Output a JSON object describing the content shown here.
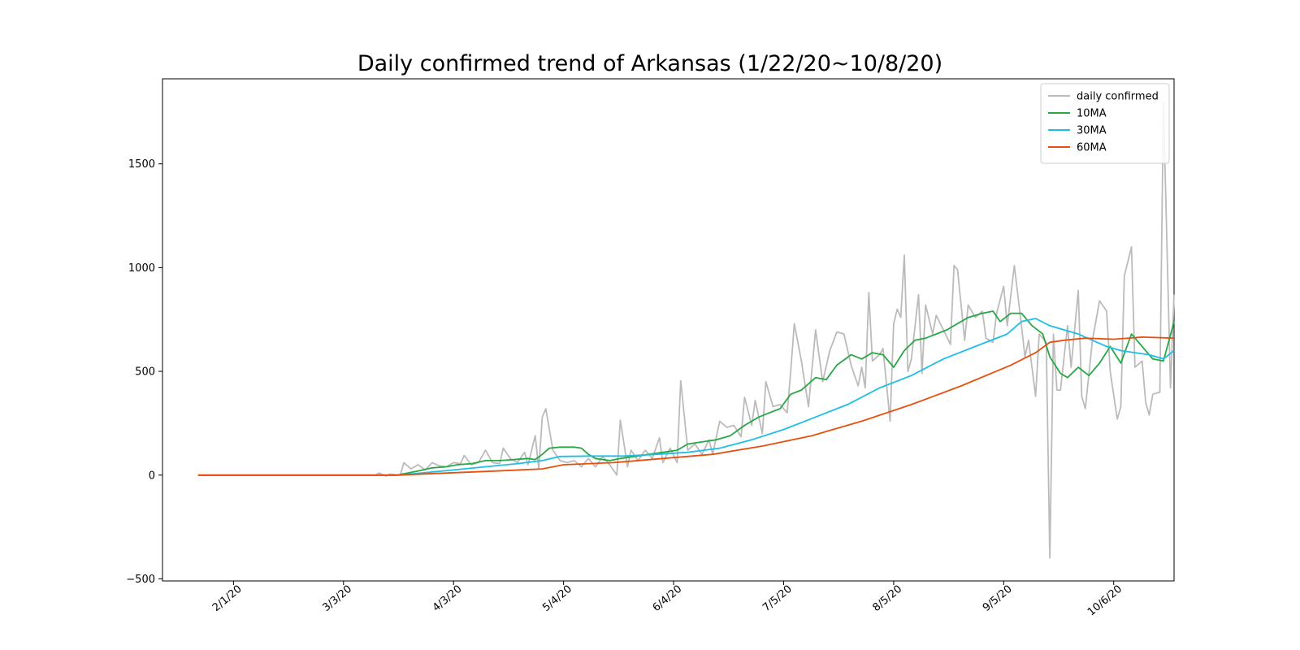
{
  "chart_data": {
    "type": "line",
    "title": "Daily confirmed trend of Arkansas (1/22/20~10/8/20)",
    "xlabel": "",
    "ylabel": "",
    "x_range": [
      "1/12/20",
      "10/23/20"
    ],
    "ylim": [
      -510,
      1910
    ],
    "grid": false,
    "legend_position": "top-right",
    "x_ticks": [
      "2/1/20",
      "3/3/20",
      "4/3/20",
      "5/4/20",
      "6/4/20",
      "7/5/20",
      "8/5/20",
      "9/5/20",
      "10/6/20"
    ],
    "y_ticks": [
      -500,
      0,
      500,
      1000,
      1500
    ],
    "colors": {
      "daily confirmed": "#bbbbbb",
      "10MA": "#28a745",
      "30MA": "#1ebee6",
      "60MA": "#e6500f"
    },
    "series": [
      {
        "name": "daily confirmed",
        "points": [
          [
            "1/22/20",
            0
          ],
          [
            "3/1/20",
            0
          ],
          [
            "3/12/20",
            0
          ],
          [
            "3/13/20",
            10
          ],
          [
            "3/15/20",
            -5
          ],
          [
            "3/16/20",
            5
          ],
          [
            "3/19/20",
            0
          ],
          [
            "3/20/20",
            60
          ],
          [
            "3/22/20",
            30
          ],
          [
            "3/24/20",
            50
          ],
          [
            "3/26/20",
            25
          ],
          [
            "3/28/20",
            60
          ],
          [
            "3/30/20",
            45
          ],
          [
            "4/1/20",
            40
          ],
          [
            "4/3/20",
            60
          ],
          [
            "4/5/20",
            55
          ],
          [
            "4/6/20",
            95
          ],
          [
            "4/8/20",
            50
          ],
          [
            "4/10/20",
            60
          ],
          [
            "4/12/20",
            120
          ],
          [
            "4/14/20",
            60
          ],
          [
            "4/16/20",
            55
          ],
          [
            "4/17/20",
            130
          ],
          [
            "4/19/20",
            80
          ],
          [
            "4/21/20",
            60
          ],
          [
            "4/23/20",
            110
          ],
          [
            "4/24/20",
            50
          ],
          [
            "4/26/20",
            190
          ],
          [
            "4/27/20",
            30
          ],
          [
            "4/28/20",
            280
          ],
          [
            "4/29/20",
            320
          ],
          [
            "5/1/20",
            120
          ],
          [
            "5/3/20",
            70
          ],
          [
            "5/5/20",
            60
          ],
          [
            "5/7/20",
            70
          ],
          [
            "5/9/20",
            40
          ],
          [
            "5/11/20",
            80
          ],
          [
            "5/13/20",
            40
          ],
          [
            "5/15/20",
            90
          ],
          [
            "5/17/20",
            50
          ],
          [
            "5/19/20",
            0
          ],
          [
            "5/20/20",
            265
          ],
          [
            "5/22/20",
            40
          ],
          [
            "5/23/20",
            120
          ],
          [
            "5/25/20",
            70
          ],
          [
            "5/27/20",
            120
          ],
          [
            "5/29/20",
            80
          ],
          [
            "5/31/20",
            180
          ],
          [
            "6/1/20",
            60
          ],
          [
            "6/3/20",
            130
          ],
          [
            "6/5/20",
            60
          ],
          [
            "6/6/20",
            455
          ],
          [
            "6/8/20",
            120
          ],
          [
            "6/10/20",
            150
          ],
          [
            "6/12/20",
            100
          ],
          [
            "6/14/20",
            170
          ],
          [
            "6/15/20",
            100
          ],
          [
            "6/17/20",
            260
          ],
          [
            "6/19/20",
            230
          ],
          [
            "6/21/20",
            240
          ],
          [
            "6/23/20",
            185
          ],
          [
            "6/24/20",
            375
          ],
          [
            "6/26/20",
            240
          ],
          [
            "6/27/20",
            360
          ],
          [
            "6/29/20",
            200
          ],
          [
            "6/30/20",
            450
          ],
          [
            "7/2/20",
            330
          ],
          [
            "7/4/20",
            340
          ],
          [
            "7/6/20",
            300
          ],
          [
            "7/7/20",
            500
          ],
          [
            "7/8/20",
            730
          ],
          [
            "7/10/20",
            550
          ],
          [
            "7/12/20",
            330
          ],
          [
            "7/14/20",
            700
          ],
          [
            "7/16/20",
            450
          ],
          [
            "7/18/20",
            600
          ],
          [
            "7/20/20",
            690
          ],
          [
            "7/22/20",
            680
          ],
          [
            "7/24/20",
            530
          ],
          [
            "7/26/20",
            430
          ],
          [
            "7/27/20",
            520
          ],
          [
            "7/28/20",
            420
          ],
          [
            "7/29/20",
            880
          ],
          [
            "7/30/20",
            550
          ],
          [
            "8/1/20",
            580
          ],
          [
            "8/2/20",
            610
          ],
          [
            "8/4/20",
            260
          ],
          [
            "8/5/20",
            730
          ],
          [
            "8/6/20",
            800
          ],
          [
            "8/7/20",
            760
          ],
          [
            "8/8/20",
            1060
          ],
          [
            "8/9/20",
            500
          ],
          [
            "8/10/20",
            560
          ],
          [
            "8/12/20",
            870
          ],
          [
            "8/13/20",
            490
          ],
          [
            "8/14/20",
            820
          ],
          [
            "8/16/20",
            680
          ],
          [
            "8/17/20",
            770
          ],
          [
            "8/19/20",
            700
          ],
          [
            "8/21/20",
            630
          ],
          [
            "8/22/20",
            1010
          ],
          [
            "8/23/20",
            990
          ],
          [
            "8/25/20",
            650
          ],
          [
            "8/26/20",
            820
          ],
          [
            "8/28/20",
            760
          ],
          [
            "8/30/20",
            790
          ],
          [
            "8/31/20",
            660
          ],
          [
            "9/2/20",
            640
          ],
          [
            "9/3/20",
            780
          ],
          [
            "9/5/20",
            910
          ],
          [
            "9/6/20",
            720
          ],
          [
            "9/8/20",
            1010
          ],
          [
            "9/10/20",
            720
          ],
          [
            "9/11/20",
            570
          ],
          [
            "9/12/20",
            650
          ],
          [
            "9/14/20",
            380
          ],
          [
            "9/15/20",
            680
          ],
          [
            "9/17/20",
            640
          ],
          [
            "9/18/20",
            -400
          ],
          [
            "9/19/20",
            680
          ],
          [
            "9/20/20",
            410
          ],
          [
            "9/21/20",
            410
          ],
          [
            "9/23/20",
            720
          ],
          [
            "9/24/20",
            520
          ],
          [
            "9/26/20",
            890
          ],
          [
            "9/27/20",
            380
          ],
          [
            "9/28/20",
            320
          ],
          [
            "9/30/20",
            650
          ],
          [
            "10/2/20",
            840
          ],
          [
            "10/4/20",
            790
          ],
          [
            "10/5/20",
            500
          ],
          [
            "10/7/20",
            270
          ],
          [
            "10/8/20",
            330
          ],
          [
            "10/9/20",
            960
          ],
          [
            "10/11/20",
            1100
          ],
          [
            "10/12/20",
            520
          ],
          [
            "10/14/20",
            550
          ],
          [
            "10/15/20",
            350
          ],
          [
            "10/16/20",
            290
          ],
          [
            "10/17/20",
            390
          ],
          [
            "10/19/20",
            400
          ],
          [
            "10/20/20",
            1800
          ],
          [
            "10/22/20",
            420
          ],
          [
            "10/23/20",
            870
          ]
        ]
      },
      {
        "name": "10MA",
        "points": [
          [
            "1/22/20",
            0
          ],
          [
            "3/18/20",
            0
          ],
          [
            "3/21/20",
            10
          ],
          [
            "3/24/20",
            20
          ],
          [
            "3/28/20",
            35
          ],
          [
            "4/1/20",
            40
          ],
          [
            "4/4/20",
            50
          ],
          [
            "4/8/20",
            55
          ],
          [
            "4/12/20",
            70
          ],
          [
            "4/16/20",
            70
          ],
          [
            "4/20/20",
            75
          ],
          [
            "4/24/20",
            80
          ],
          [
            "4/26/20",
            75
          ],
          [
            "4/28/20",
            100
          ],
          [
            "4/30/20",
            130
          ],
          [
            "5/3/20",
            135
          ],
          [
            "5/7/20",
            135
          ],
          [
            "5/9/20",
            130
          ],
          [
            "5/11/20",
            100
          ],
          [
            "5/13/20",
            80
          ],
          [
            "5/17/20",
            70
          ],
          [
            "5/20/20",
            80
          ],
          [
            "5/24/20",
            90
          ],
          [
            "5/28/20",
            100
          ],
          [
            "6/1/20",
            110
          ],
          [
            "6/5/20",
            120
          ],
          [
            "6/8/20",
            150
          ],
          [
            "6/12/20",
            160
          ],
          [
            "6/16/20",
            170
          ],
          [
            "6/20/20",
            190
          ],
          [
            "6/24/20",
            240
          ],
          [
            "6/28/20",
            280
          ],
          [
            "7/1/20",
            300
          ],
          [
            "7/4/20",
            320
          ],
          [
            "7/7/20",
            390
          ],
          [
            "7/10/20",
            410
          ],
          [
            "7/12/20",
            440
          ],
          [
            "7/14/20",
            470
          ],
          [
            "7/17/20",
            460
          ],
          [
            "7/20/20",
            530
          ],
          [
            "7/24/20",
            580
          ],
          [
            "7/27/20",
            560
          ],
          [
            "7/30/20",
            590
          ],
          [
            "8/2/20",
            580
          ],
          [
            "8/5/20",
            520
          ],
          [
            "8/8/20",
            600
          ],
          [
            "8/11/20",
            650
          ],
          [
            "8/14/20",
            660
          ],
          [
            "8/17/20",
            680
          ],
          [
            "8/20/20",
            700
          ],
          [
            "8/23/20",
            730
          ],
          [
            "8/26/20",
            760
          ],
          [
            "8/30/20",
            780
          ],
          [
            "9/2/20",
            790
          ],
          [
            "9/4/20",
            740
          ],
          [
            "9/7/20",
            780
          ],
          [
            "9/10/20",
            780
          ],
          [
            "9/13/20",
            720
          ],
          [
            "9/16/20",
            680
          ],
          [
            "9/18/20",
            570
          ],
          [
            "9/21/20",
            490
          ],
          [
            "9/23/20",
            470
          ],
          [
            "9/26/20",
            520
          ],
          [
            "9/29/20",
            480
          ],
          [
            "10/2/20",
            540
          ],
          [
            "10/5/20",
            620
          ],
          [
            "10/8/20",
            540
          ],
          [
            "10/11/20",
            680
          ],
          [
            "10/14/20",
            620
          ],
          [
            "10/17/20",
            560
          ],
          [
            "10/20/20",
            550
          ],
          [
            "10/23/20",
            740
          ]
        ]
      },
      {
        "name": "30MA",
        "points": [
          [
            "1/22/20",
            0
          ],
          [
            "3/18/20",
            0
          ],
          [
            "3/25/20",
            10
          ],
          [
            "4/3/20",
            25
          ],
          [
            "4/12/20",
            40
          ],
          [
            "4/21/20",
            55
          ],
          [
            "4/28/20",
            70
          ],
          [
            "5/3/20",
            90
          ],
          [
            "5/12/20",
            92
          ],
          [
            "5/21/20",
            92
          ],
          [
            "5/30/20",
            100
          ],
          [
            "6/8/20",
            110
          ],
          [
            "6/17/20",
            130
          ],
          [
            "6/26/20",
            170
          ],
          [
            "7/5/20",
            220
          ],
          [
            "7/14/20",
            280
          ],
          [
            "7/23/20",
            340
          ],
          [
            "8/1/20",
            420
          ],
          [
            "8/10/20",
            480
          ],
          [
            "8/19/20",
            560
          ],
          [
            "8/28/20",
            620
          ],
          [
            "9/6/20",
            680
          ],
          [
            "9/10/20",
            740
          ],
          [
            "9/14/20",
            755
          ],
          [
            "9/18/20",
            720
          ],
          [
            "9/22/20",
            700
          ],
          [
            "9/26/20",
            680
          ],
          [
            "9/30/20",
            650
          ],
          [
            "10/4/20",
            620
          ],
          [
            "10/8/20",
            600
          ],
          [
            "10/12/20",
            590
          ],
          [
            "10/16/20",
            580
          ],
          [
            "10/20/20",
            560
          ],
          [
            "10/23/20",
            600
          ]
        ]
      },
      {
        "name": "60MA",
        "points": [
          [
            "1/22/20",
            0
          ],
          [
            "3/18/20",
            0
          ],
          [
            "4/1/20",
            10
          ],
          [
            "4/15/20",
            20
          ],
          [
            "4/28/20",
            30
          ],
          [
            "5/4/20",
            50
          ],
          [
            "5/18/20",
            60
          ],
          [
            "6/1/20",
            80
          ],
          [
            "6/15/20",
            100
          ],
          [
            "6/29/20",
            140
          ],
          [
            "7/13/20",
            190
          ],
          [
            "7/27/20",
            260
          ],
          [
            "8/10/20",
            340
          ],
          [
            "8/24/20",
            430
          ],
          [
            "9/7/20",
            530
          ],
          [
            "9/14/20",
            590
          ],
          [
            "9/18/20",
            640
          ],
          [
            "9/22/20",
            650
          ],
          [
            "9/28/20",
            660
          ],
          [
            "10/6/20",
            655
          ],
          [
            "10/14/20",
            665
          ],
          [
            "10/23/20",
            660
          ]
        ]
      }
    ]
  }
}
